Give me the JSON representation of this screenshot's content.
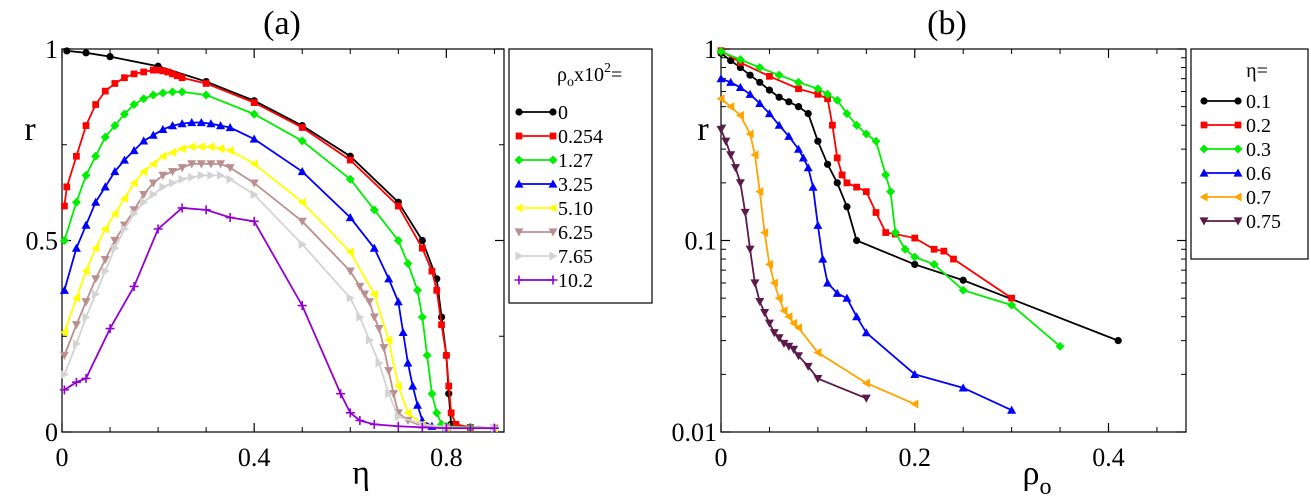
{
  "chart_data": [
    {
      "type": "line",
      "title": "(a)",
      "xlabel": "η",
      "ylabel": "r",
      "xlim": [
        0,
        0.92
      ],
      "ylim": [
        0,
        1
      ],
      "x_ticks": [
        0,
        0.4,
        0.8
      ],
      "x_tick_labels": [
        "0",
        "0.4",
        "0.8"
      ],
      "y_ticks": [
        0,
        0.5,
        1
      ],
      "y_tick_labels": [
        "0",
        "0.5",
        "1"
      ],
      "legend": {
        "title_main": "ρ",
        "title_sub": "o",
        "title_rest": "x10",
        "title_sup": "2",
        "title_end": "=",
        "placement": "right"
      },
      "series": [
        {
          "name": "0",
          "label": "0",
          "color": "#000000",
          "marker": "circle",
          "x": [
            0.01,
            0.05,
            0.1,
            0.2,
            0.3,
            0.4,
            0.5,
            0.6,
            0.7,
            0.75,
            0.78,
            0.79,
            0.8,
            0.805,
            0.81,
            0.85,
            0.9
          ],
          "y": [
            0.995,
            0.99,
            0.98,
            0.955,
            0.915,
            0.865,
            0.8,
            0.72,
            0.6,
            0.5,
            0.4,
            0.3,
            0.2,
            0.1,
            0.02,
            0.012,
            0.01
          ]
        },
        {
          "name": "0.254",
          "label": "0.254",
          "color": "#ff0000",
          "marker": "square",
          "x": [
            0.005,
            0.01,
            0.03,
            0.05,
            0.07,
            0.09,
            0.11,
            0.13,
            0.15,
            0.17,
            0.19,
            0.2,
            0.21,
            0.22,
            0.23,
            0.24,
            0.25,
            0.3,
            0.4,
            0.5,
            0.6,
            0.7,
            0.75,
            0.77,
            0.78,
            0.79,
            0.8,
            0.805,
            0.81,
            0.82,
            0.85,
            0.9
          ],
          "y": [
            0.59,
            0.64,
            0.72,
            0.8,
            0.855,
            0.89,
            0.91,
            0.925,
            0.935,
            0.94,
            0.945,
            0.945,
            0.943,
            0.94,
            0.935,
            0.93,
            0.925,
            0.91,
            0.86,
            0.795,
            0.71,
            0.59,
            0.48,
            0.42,
            0.37,
            0.28,
            0.2,
            0.12,
            0.05,
            0.02,
            0.012,
            0.01
          ]
        },
        {
          "name": "1.27",
          "label": "1.27",
          "color": "#00ee00",
          "marker": "diamond",
          "x": [
            0.005,
            0.03,
            0.05,
            0.07,
            0.09,
            0.11,
            0.13,
            0.15,
            0.17,
            0.19,
            0.21,
            0.23,
            0.25,
            0.3,
            0.4,
            0.5,
            0.6,
            0.65,
            0.7,
            0.72,
            0.74,
            0.75,
            0.76,
            0.77,
            0.78,
            0.79,
            0.8,
            0.85,
            0.9
          ],
          "y": [
            0.5,
            0.6,
            0.67,
            0.72,
            0.77,
            0.8,
            0.83,
            0.855,
            0.87,
            0.88,
            0.885,
            0.888,
            0.888,
            0.88,
            0.83,
            0.76,
            0.66,
            0.58,
            0.5,
            0.44,
            0.37,
            0.3,
            0.2,
            0.1,
            0.05,
            0.02,
            0.015,
            0.012,
            0.01
          ]
        },
        {
          "name": "3.25",
          "label": "3.25",
          "color": "#0000ff",
          "marker": "triangle-up",
          "x": [
            0.005,
            0.03,
            0.05,
            0.07,
            0.09,
            0.11,
            0.13,
            0.15,
            0.17,
            0.19,
            0.21,
            0.23,
            0.25,
            0.27,
            0.29,
            0.31,
            0.33,
            0.35,
            0.4,
            0.5,
            0.6,
            0.65,
            0.68,
            0.7,
            0.71,
            0.72,
            0.73,
            0.74,
            0.75,
            0.77,
            0.8,
            0.9
          ],
          "y": [
            0.37,
            0.48,
            0.54,
            0.6,
            0.64,
            0.68,
            0.71,
            0.735,
            0.76,
            0.775,
            0.79,
            0.8,
            0.805,
            0.808,
            0.808,
            0.805,
            0.8,
            0.795,
            0.765,
            0.68,
            0.56,
            0.48,
            0.4,
            0.34,
            0.26,
            0.18,
            0.12,
            0.07,
            0.03,
            0.015,
            0.012,
            0.01
          ]
        },
        {
          "name": "5.10",
          "label": "5.10",
          "color": "#ffff00",
          "marker": "triangle-left",
          "x": [
            0.005,
            0.03,
            0.05,
            0.07,
            0.09,
            0.11,
            0.13,
            0.15,
            0.17,
            0.19,
            0.21,
            0.23,
            0.25,
            0.27,
            0.29,
            0.31,
            0.33,
            0.35,
            0.4,
            0.5,
            0.6,
            0.65,
            0.68,
            0.7,
            0.72,
            0.75,
            0.8,
            0.9
          ],
          "y": [
            0.26,
            0.35,
            0.42,
            0.48,
            0.53,
            0.57,
            0.61,
            0.65,
            0.68,
            0.7,
            0.72,
            0.73,
            0.74,
            0.745,
            0.745,
            0.745,
            0.74,
            0.735,
            0.7,
            0.6,
            0.47,
            0.36,
            0.24,
            0.12,
            0.05,
            0.02,
            0.012,
            0.01
          ]
        },
        {
          "name": "6.25",
          "label": "6.25",
          "color": "#bc8f8f",
          "marker": "triangle-down",
          "x": [
            0.005,
            0.03,
            0.05,
            0.07,
            0.09,
            0.11,
            0.13,
            0.15,
            0.17,
            0.19,
            0.21,
            0.23,
            0.25,
            0.27,
            0.29,
            0.31,
            0.33,
            0.35,
            0.4,
            0.5,
            0.6,
            0.62,
            0.63,
            0.64,
            0.65,
            0.66,
            0.67,
            0.68,
            0.69,
            0.7,
            0.72,
            0.75,
            0.8,
            0.9
          ],
          "y": [
            0.2,
            0.28,
            0.34,
            0.4,
            0.45,
            0.5,
            0.54,
            0.58,
            0.62,
            0.65,
            0.67,
            0.68,
            0.69,
            0.7,
            0.7,
            0.7,
            0.7,
            0.69,
            0.65,
            0.55,
            0.42,
            0.38,
            0.36,
            0.34,
            0.3,
            0.27,
            0.22,
            0.16,
            0.1,
            0.05,
            0.03,
            0.015,
            0.012,
            0.01
          ]
        },
        {
          "name": "7.65",
          "label": "7.65",
          "color": "#d3d3d3",
          "marker": "triangle-right",
          "x": [
            0.005,
            0.03,
            0.05,
            0.07,
            0.09,
            0.11,
            0.13,
            0.15,
            0.17,
            0.19,
            0.21,
            0.23,
            0.25,
            0.27,
            0.29,
            0.31,
            0.33,
            0.35,
            0.4,
            0.5,
            0.6,
            0.62,
            0.64,
            0.66,
            0.68,
            0.7,
            0.75,
            0.8,
            0.9
          ],
          "y": [
            0.15,
            0.23,
            0.3,
            0.36,
            0.42,
            0.48,
            0.53,
            0.57,
            0.6,
            0.62,
            0.64,
            0.65,
            0.66,
            0.665,
            0.67,
            0.67,
            0.67,
            0.66,
            0.62,
            0.49,
            0.35,
            0.3,
            0.24,
            0.18,
            0.1,
            0.04,
            0.02,
            0.012,
            0.01
          ]
        },
        {
          "name": "10.2",
          "label": "10.2",
          "color": "#9400d3",
          "marker": "plus",
          "x": [
            0.005,
            0.03,
            0.05,
            0.1,
            0.15,
            0.2,
            0.25,
            0.3,
            0.35,
            0.4,
            0.5,
            0.58,
            0.6,
            0.62,
            0.65,
            0.7,
            0.75,
            0.8,
            0.85,
            0.9
          ],
          "y": [
            0.11,
            0.13,
            0.14,
            0.27,
            0.38,
            0.53,
            0.585,
            0.58,
            0.56,
            0.55,
            0.33,
            0.1,
            0.05,
            0.03,
            0.02,
            0.015,
            0.012,
            0.01,
            0.01,
            0.01
          ]
        }
      ]
    },
    {
      "type": "line",
      "title": "(b)",
      "xlabel_main": "ρ",
      "xlabel_sub": "o",
      "ylabel": "r",
      "xlim": [
        0,
        0.48
      ],
      "ylim": [
        0.01,
        1
      ],
      "yscale": "log",
      "x_ticks": [
        0,
        0.2,
        0.4
      ],
      "x_tick_labels": [
        "0",
        "0.2",
        "0.4"
      ],
      "y_ticks": [
        0.01,
        0.1,
        1
      ],
      "y_tick_labels": [
        "0.01",
        "0.1",
        "1"
      ],
      "legend": {
        "title": "η=",
        "placement": "top-right"
      },
      "series": [
        {
          "name": "0.1",
          "label": "0.1",
          "color": "#000000",
          "marker": "circle",
          "x": [
            0.0,
            0.01,
            0.02,
            0.03,
            0.04,
            0.05,
            0.06,
            0.07,
            0.08,
            0.09,
            0.1,
            0.11,
            0.12,
            0.13,
            0.14,
            0.2,
            0.25,
            0.41
          ],
          "y": [
            0.95,
            0.87,
            0.8,
            0.73,
            0.67,
            0.61,
            0.56,
            0.53,
            0.5,
            0.46,
            0.33,
            0.25,
            0.2,
            0.15,
            0.1,
            0.075,
            0.062,
            0.03
          ]
        },
        {
          "name": "0.2",
          "label": "0.2",
          "color": "#ff0000",
          "marker": "square",
          "x": [
            0.0,
            0.02,
            0.05,
            0.08,
            0.1,
            0.11,
            0.115,
            0.12,
            0.125,
            0.13,
            0.14,
            0.15,
            0.16,
            0.17,
            0.18,
            0.2,
            0.22,
            0.23,
            0.24,
            0.3
          ],
          "y": [
            0.98,
            0.85,
            0.72,
            0.62,
            0.58,
            0.55,
            0.4,
            0.27,
            0.22,
            0.2,
            0.19,
            0.18,
            0.14,
            0.11,
            0.108,
            0.103,
            0.09,
            0.088,
            0.08,
            0.05
          ]
        },
        {
          "name": "0.3",
          "label": "0.3",
          "color": "#00ee00",
          "marker": "diamond",
          "x": [
            0.0,
            0.02,
            0.04,
            0.06,
            0.08,
            0.1,
            0.11,
            0.12,
            0.13,
            0.14,
            0.15,
            0.16,
            0.17,
            0.175,
            0.18,
            0.19,
            0.2,
            0.22,
            0.25,
            0.3,
            0.35
          ],
          "y": [
            0.97,
            0.88,
            0.8,
            0.73,
            0.67,
            0.62,
            0.58,
            0.54,
            0.46,
            0.4,
            0.36,
            0.33,
            0.22,
            0.18,
            0.11,
            0.09,
            0.082,
            0.075,
            0.055,
            0.046,
            0.028
          ]
        },
        {
          "name": "0.6",
          "label": "0.6",
          "color": "#0000ff",
          "marker": "triangle-up",
          "x": [
            0.0,
            0.01,
            0.02,
            0.03,
            0.04,
            0.05,
            0.06,
            0.07,
            0.08,
            0.085,
            0.09,
            0.095,
            0.1,
            0.105,
            0.11,
            0.12,
            0.13,
            0.14,
            0.15,
            0.2,
            0.25,
            0.3
          ],
          "y": [
            0.7,
            0.67,
            0.63,
            0.58,
            0.52,
            0.46,
            0.4,
            0.35,
            0.3,
            0.27,
            0.24,
            0.19,
            0.12,
            0.08,
            0.06,
            0.053,
            0.05,
            0.04,
            0.033,
            0.02,
            0.017,
            0.013
          ]
        },
        {
          "name": "0.7",
          "label": "0.7",
          "color": "#ffa500",
          "marker": "triangle-left",
          "x": [
            0.0,
            0.01,
            0.02,
            0.03,
            0.035,
            0.04,
            0.045,
            0.05,
            0.055,
            0.06,
            0.065,
            0.07,
            0.075,
            0.08,
            0.1,
            0.15,
            0.2
          ],
          "y": [
            0.55,
            0.5,
            0.45,
            0.36,
            0.28,
            0.18,
            0.11,
            0.075,
            0.06,
            0.05,
            0.043,
            0.04,
            0.037,
            0.035,
            0.026,
            0.018,
            0.014
          ]
        },
        {
          "name": "0.75",
          "label": "0.75",
          "color": "#5c1a4a",
          "marker": "triangle-down",
          "x": [
            0.0,
            0.005,
            0.01,
            0.015,
            0.02,
            0.025,
            0.03,
            0.035,
            0.04,
            0.045,
            0.05,
            0.055,
            0.06,
            0.065,
            0.07,
            0.075,
            0.08,
            0.09,
            0.1,
            0.15
          ],
          "y": [
            0.38,
            0.33,
            0.28,
            0.24,
            0.2,
            0.14,
            0.09,
            0.06,
            0.048,
            0.042,
            0.037,
            0.033,
            0.031,
            0.029,
            0.028,
            0.027,
            0.025,
            0.022,
            0.019,
            0.015
          ]
        }
      ]
    }
  ]
}
